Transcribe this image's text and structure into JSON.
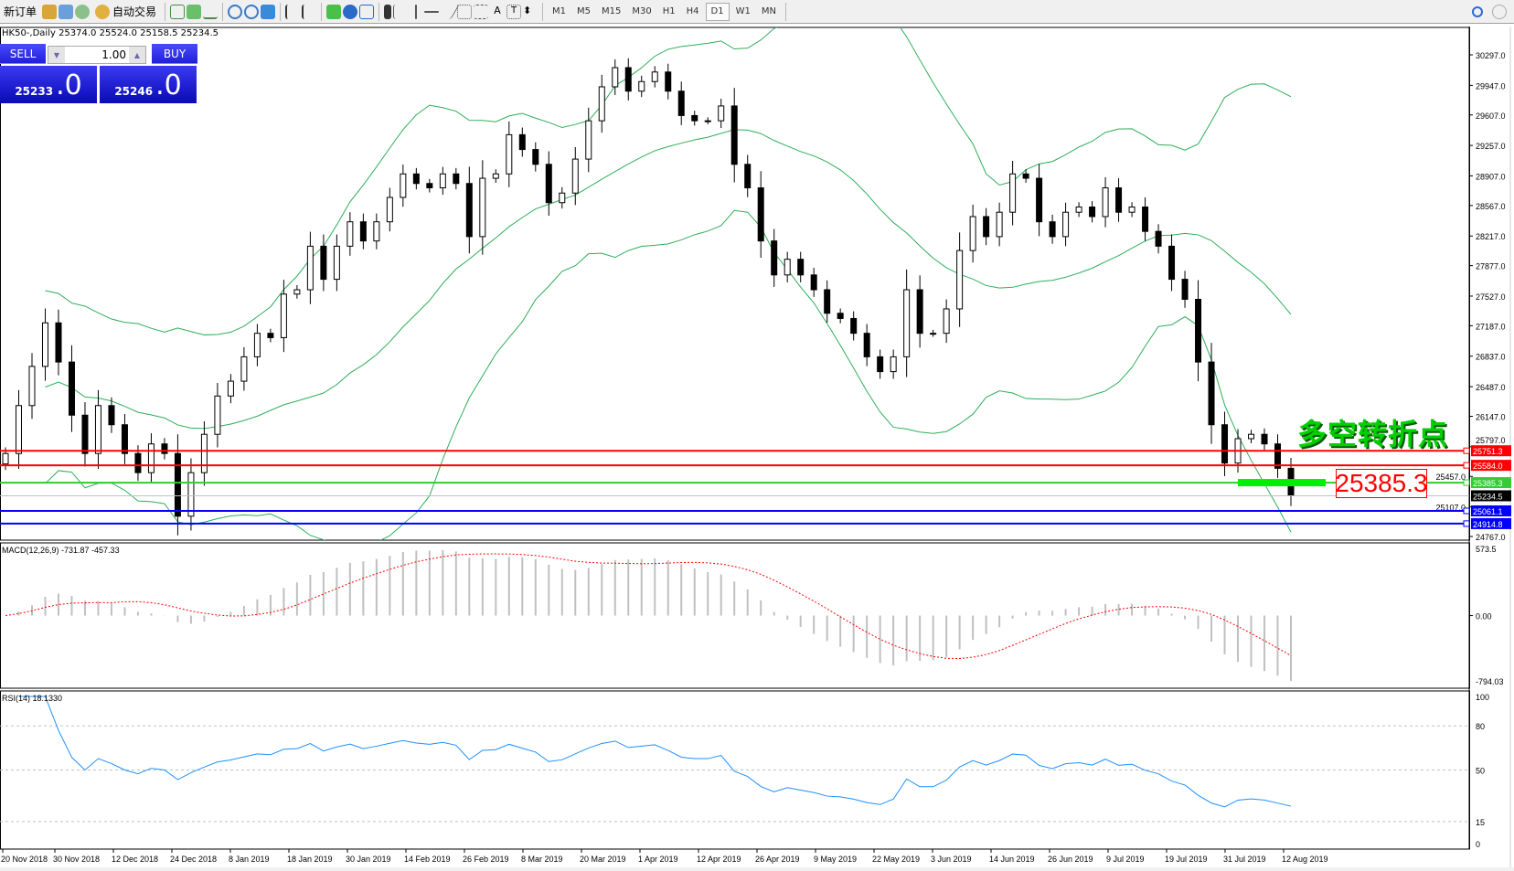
{
  "toolbar": {
    "new_order": "新订单",
    "auto_trading": "自动交易",
    "timeframes": [
      "M1",
      "M5",
      "M15",
      "M30",
      "H1",
      "H4",
      "D1",
      "W1",
      "MN"
    ],
    "active_timeframe": "D1"
  },
  "symbol_info": "HK50-,Daily  25374.0 25524.0 25158.5 25234.5",
  "trade_panel": {
    "sell": "SELL",
    "buy": "BUY",
    "lot": "1.00",
    "sell_price_small": "25233",
    "sell_price_big": ".0",
    "buy_price_small": "25246",
    "buy_price_big": ".0"
  },
  "annotation": {
    "text": "多空转折点",
    "level_box": "25385.3"
  },
  "colors": {
    "up_candle": "#ffffff",
    "down_candle": "#000000",
    "bollinger": "#2eae5a",
    "macd_hist": "#c0c0c0",
    "macd_signal": "#ff0000",
    "rsi": "#1e90ff"
  },
  "chart_data": [
    {
      "type": "candlestick",
      "symbol": "HK50-",
      "timeframe": "Daily",
      "ylim": [
        24767,
        30297
      ],
      "y_ticks": [
        "30297.0",
        "29947.0",
        "29607.0",
        "29257.0",
        "28907.0",
        "28567.0",
        "28217.0",
        "27877.0",
        "27527.0",
        "27187.0",
        "26837.0",
        "26487.0",
        "26147.0",
        "25797.0",
        "25457.0",
        "25107.0",
        "24767.0"
      ],
      "x_ticks": [
        "20 Nov 2018",
        "30 Nov 2018",
        "12 Dec 2018",
        "24 Dec 2018",
        "8 Jan 2019",
        "18 Jan 2019",
        "30 Jan 2019",
        "14 Feb 2019",
        "26 Feb 2019",
        "8 Mar 2019",
        "20 Mar 2019",
        "1 Apr 2019",
        "12 Apr 2019",
        "26 Apr 2019",
        "9 May 2019",
        "22 May 2019",
        "3 Jun 2019",
        "14 Jun 2019",
        "26 Jun 2019",
        "9 Jul 2019",
        "19 Jul 2019",
        "31 Jul 2019",
        "12 Aug 2019"
      ],
      "closes": [
        25720,
        26270,
        26720,
        27220,
        26770,
        26160,
        25720,
        26270,
        26050,
        25720,
        25500,
        25830,
        25720,
        25000,
        25500,
        25940,
        26380,
        26550,
        26830,
        27100,
        27050,
        27550,
        27600,
        28100,
        27720,
        28100,
        28380,
        28160,
        28380,
        28660,
        28930,
        28820,
        28770,
        28930,
        28820,
        28210,
        28880,
        28930,
        29380,
        29210,
        29040,
        28600,
        28710,
        29100,
        29540,
        29930,
        30150,
        29880,
        29990,
        30100,
        29880,
        29600,
        29540,
        29540,
        29710,
        29040,
        28770,
        28160,
        27770,
        27950,
        27770,
        27600,
        27330,
        27270,
        27100,
        26830,
        26660,
        26830,
        27600,
        27100,
        27100,
        27380,
        28050,
        28440,
        28210,
        28490,
        28930,
        28880,
        28380,
        28210,
        28490,
        28550,
        28440,
        28770,
        28490,
        28550,
        28270,
        28100,
        27720,
        27490,
        26770,
        26050,
        25610,
        25890,
        25940,
        25830,
        25550,
        25234.5
      ],
      "indicator": "Bollinger Bands",
      "hlines": [
        {
          "value": "25751.3",
          "color": "#ff0000"
        },
        {
          "value": "25584.0",
          "color": "#ff0000"
        },
        {
          "value": "25385.3",
          "color": "#33cc33"
        },
        {
          "value": "25234.5",
          "color": "#000000"
        },
        {
          "value": "25061.1",
          "color": "#0000ff"
        },
        {
          "value": "24914.8",
          "color": "#0000ff"
        }
      ]
    },
    {
      "type": "bar+line",
      "title": "MACD(12,26,9) -731.87 -457.33",
      "y_ticks": [
        "573.5",
        "0.00",
        "-794.03"
      ]
    },
    {
      "type": "line",
      "title": "RSI(14) 18.1330",
      "y_ticks": [
        "100",
        "80",
        "50",
        "15",
        "0"
      ],
      "levels": [
        80,
        50,
        15
      ]
    }
  ]
}
